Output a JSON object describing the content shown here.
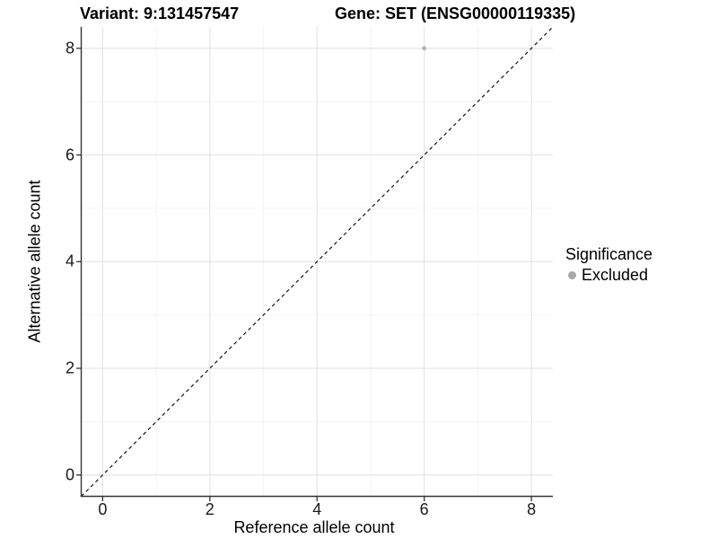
{
  "figure": {
    "title_variant": "Variant: 9:131457547",
    "title_gene": "Gene: SET (ENSG00000119335)"
  },
  "chart_data": {
    "type": "scatter",
    "title": "Variant: 9:131457547    Gene: SET (ENSG00000119335)",
    "xlabel": "Reference allele count",
    "ylabel": "Alternative allele count",
    "xlim": [
      -0.4,
      8.4
    ],
    "ylim": [
      -0.4,
      8.4
    ],
    "x_ticks": [
      0,
      2,
      4,
      6,
      8
    ],
    "y_ticks": [
      0,
      2,
      4,
      6,
      8
    ],
    "x_minor_ticks": [
      1,
      3,
      5,
      7
    ],
    "y_minor_ticks": [
      1,
      3,
      5,
      7
    ],
    "grid": true,
    "series": [
      {
        "name": "Excluded",
        "points": [
          {
            "x": 6,
            "y": 8
          }
        ],
        "color": "#b2b2b2",
        "marker": "circle"
      }
    ],
    "reference_line": {
      "type": "identity",
      "from": [
        -0.4,
        -0.4
      ],
      "to": [
        8.4,
        8.4
      ],
      "style": "dashed",
      "color": "#000000"
    },
    "legend": {
      "title": "Significance",
      "position": "right",
      "items": [
        {
          "label": "Excluded",
          "color": "#a9a9a9",
          "marker": "circle"
        }
      ]
    },
    "colors": {
      "background": "#ffffff",
      "grid_major": "#e5e5e5",
      "grid_minor": "#f2f2f2",
      "axis_line": "#333333",
      "tick_mark": "#333333",
      "tick_text": "#1a1a1a"
    }
  }
}
